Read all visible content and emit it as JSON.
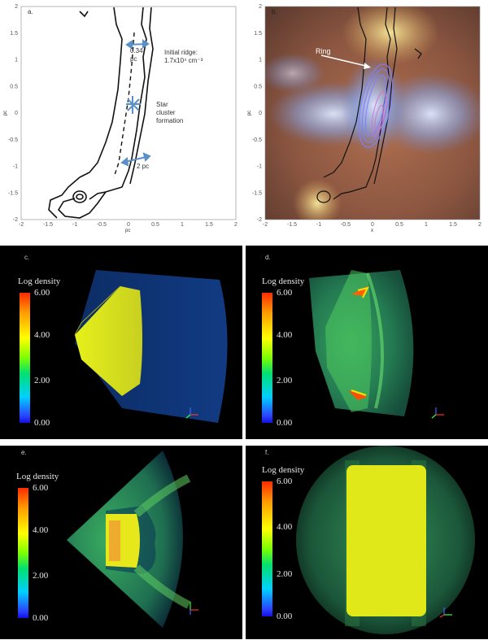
{
  "panels": {
    "a": {
      "label": "a.",
      "xlabel": "pc",
      "ylabel": "pc",
      "xticks": [
        "-2",
        "-1.5",
        "-1",
        "-0.5",
        "0",
        "0.5",
        "1",
        "1.5",
        "2"
      ],
      "yticks": [
        "2",
        "1.5",
        "1",
        "0.5",
        "0",
        "-0.5",
        "-1",
        "-1.5",
        "-2"
      ],
      "ann_width_top": "0.34",
      "ann_width_top_unit": "pc",
      "ann_ridge_1": "Initial ridge:",
      "ann_ridge_2": "1.7x10⁴ cm⁻³",
      "ann_star_1": "Star",
      "ann_star_2": "cluster",
      "ann_star_3": "formation",
      "ann_width_bottom": "2 pc"
    },
    "b": {
      "label": "b.",
      "xlabel": "x",
      "ylabel": "pc",
      "ring_label": "Ring",
      "xticks": [
        "-2",
        "-1.5",
        "-1",
        "-0.5",
        "0",
        "0.5",
        "1",
        "1.5",
        "2"
      ],
      "yticks": [
        "2",
        "1.5",
        "1",
        "0.5",
        "0",
        "-0.5",
        "-1",
        "-1.5",
        "-2"
      ]
    },
    "c": {
      "label": "c.",
      "cb_title": "Log density",
      "cb_ticks": [
        "6.00",
        "4.00",
        "2.00",
        "0.00"
      ]
    },
    "d": {
      "label": "d.",
      "cb_title": "Log density",
      "cb_ticks": [
        "6.00",
        "4.00",
        "2.00",
        "0.00"
      ]
    },
    "e": {
      "label": "e.",
      "cb_title": "Log density",
      "cb_ticks": [
        "6.00",
        "4.00",
        "2.00",
        "0.00"
      ]
    },
    "f": {
      "label": "f.",
      "cb_title": "Log density",
      "cb_ticks": [
        "6.00",
        "4.00",
        "2.00",
        "0.00"
      ]
    }
  },
  "axis_triad": {
    "x": "x",
    "y": "y",
    "z": "z"
  },
  "colors": {
    "contour": "#111111",
    "arrow": "#5a8fc8",
    "yellow": "#e7f020",
    "green": "#2fb24a",
    "blue": "#1a4fa0",
    "red": "#ff3a00",
    "black": "#000000"
  }
}
